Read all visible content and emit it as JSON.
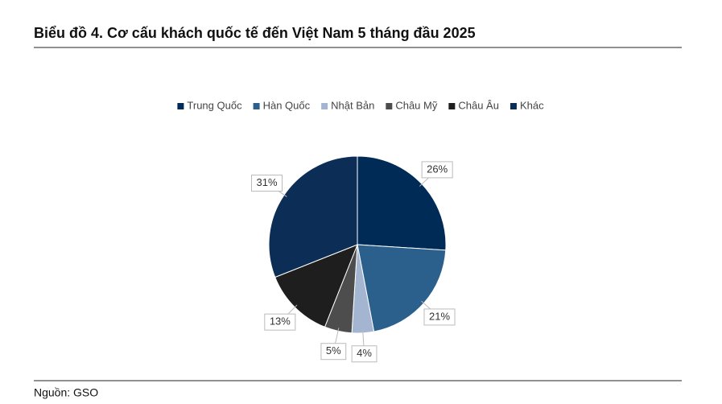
{
  "chart_data": {
    "type": "pie",
    "title": "Biểu đồ 4. Cơ cấu khách quốc tế đến Việt Nam 5 tháng đầu 2025",
    "categories": [
      "Trung Quốc",
      "Hàn Quốc",
      "Nhật Bản",
      "Châu Mỹ",
      "Châu Âu",
      "Khác"
    ],
    "values": [
      26,
      21,
      4,
      5,
      13,
      31
    ],
    "value_labels": [
      "26%",
      "21%",
      "4%",
      "5%",
      "13%",
      "31%"
    ],
    "colors": [
      "#002b57",
      "#2b5f8c",
      "#a4b5d2",
      "#4d4d4d",
      "#1e1e1e",
      "#0b2d56"
    ],
    "legend": "top",
    "source": "Nguồn: GSO"
  }
}
